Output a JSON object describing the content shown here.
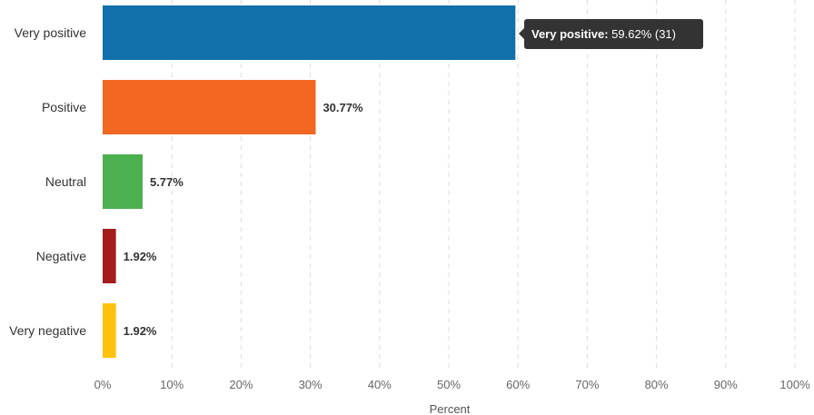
{
  "chart_data": {
    "type": "bar",
    "orientation": "horizontal",
    "categories": [
      "Very positive",
      "Positive",
      "Neutral",
      "Negative",
      "Very negative"
    ],
    "values": [
      59.62,
      30.77,
      5.77,
      1.92,
      1.92
    ],
    "value_labels": [
      "",
      "30.77%",
      "5.77%",
      "1.92%",
      "1.92%"
    ],
    "colors": [
      "#1170aa",
      "#f26722",
      "#4caf50",
      "#a31d1d",
      "#fcc20d"
    ],
    "xlabel": "Percent",
    "ylabel": "",
    "xlim": [
      0,
      100
    ],
    "x_ticks": [
      "0%",
      "10%",
      "20%",
      "30%",
      "40%",
      "50%",
      "60%",
      "70%",
      "80%",
      "90%",
      "100%"
    ],
    "grid": true,
    "tooltip": {
      "category": "Very positive",
      "label": "Very positive:",
      "value_text": "59.62% (31)"
    }
  }
}
